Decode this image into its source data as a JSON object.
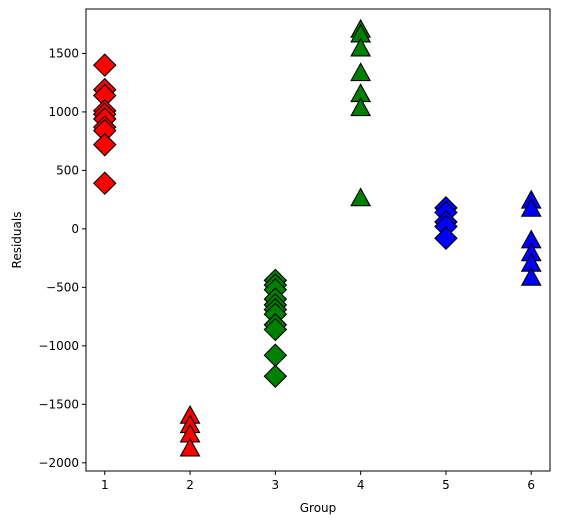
{
  "chart_data": {
    "type": "scatter",
    "title": "",
    "xlabel": "Group",
    "ylabel": "Residuals",
    "xlim": [
      0.78,
      6.22
    ],
    "ylim": [
      -2070,
      1880
    ],
    "xticks": [
      1,
      2,
      3,
      4,
      5,
      6
    ],
    "yticks": [
      -2000,
      -1500,
      -1000,
      -500,
      0,
      500,
      1000,
      1500
    ],
    "grid": false,
    "series": [
      {
        "marker": "diamond",
        "color": "#ff0000",
        "points": [
          [
            1,
            1400
          ],
          [
            1,
            1190
          ],
          [
            1,
            1140
          ],
          [
            1,
            1010
          ],
          [
            1,
            980
          ],
          [
            1,
            940
          ],
          [
            1,
            870
          ],
          [
            1,
            840
          ],
          [
            1,
            720
          ],
          [
            1,
            390
          ]
        ]
      },
      {
        "marker": "triangle",
        "color": "#ff0000",
        "points": [
          [
            2,
            -1600
          ],
          [
            2,
            -1680
          ],
          [
            2,
            -1760
          ],
          [
            2,
            -1880
          ]
        ]
      },
      {
        "marker": "diamond",
        "color": "#008000",
        "points": [
          [
            3,
            -440
          ],
          [
            3,
            -480
          ],
          [
            3,
            -520
          ],
          [
            3,
            -600
          ],
          [
            3,
            -650
          ],
          [
            3,
            -690
          ],
          [
            3,
            -730
          ],
          [
            3,
            -820
          ],
          [
            3,
            -860
          ],
          [
            3,
            -1080
          ],
          [
            3,
            -1260
          ]
        ]
      },
      {
        "marker": "triangle",
        "color": "#008000",
        "points": [
          [
            4,
            1700
          ],
          [
            4,
            1660
          ],
          [
            4,
            1540
          ],
          [
            4,
            1330
          ],
          [
            4,
            1150
          ],
          [
            4,
            1030
          ],
          [
            4,
            260
          ]
        ]
      },
      {
        "marker": "diamond",
        "color": "#0000ff",
        "points": [
          [
            5,
            180
          ],
          [
            5,
            140
          ],
          [
            5,
            60
          ],
          [
            5,
            20
          ],
          [
            5,
            -80
          ]
        ]
      },
      {
        "marker": "triangle",
        "color": "#0000ff",
        "points": [
          [
            6,
            240
          ],
          [
            6,
            170
          ],
          [
            6,
            -100
          ],
          [
            6,
            -210
          ],
          [
            6,
            -300
          ],
          [
            6,
            -420
          ]
        ]
      }
    ]
  }
}
